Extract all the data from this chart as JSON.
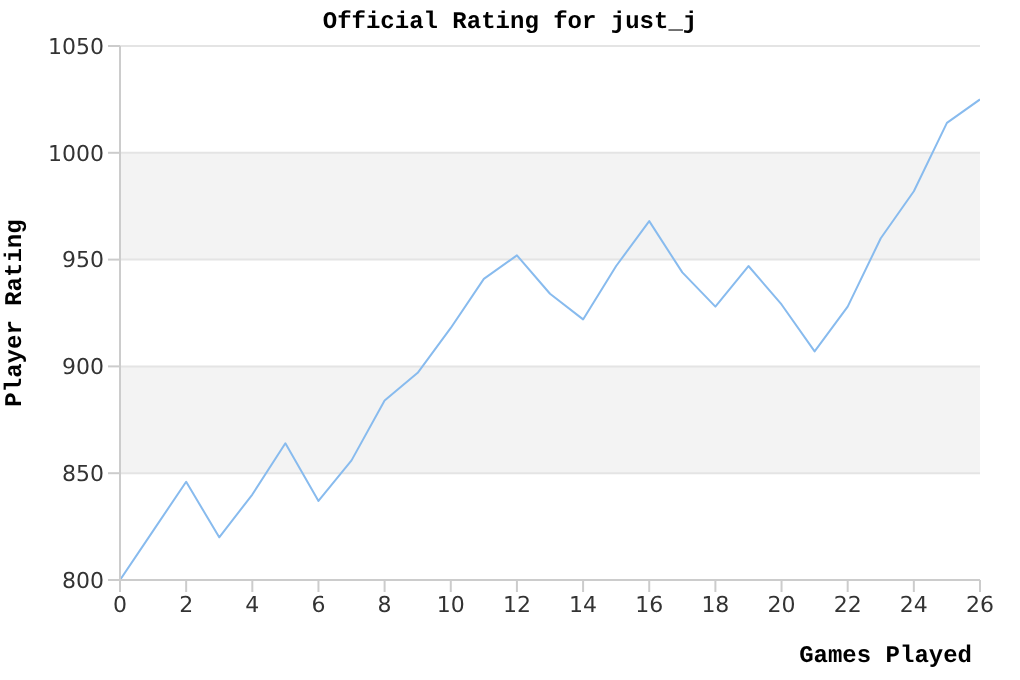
{
  "chart_data": {
    "type": "line",
    "title": "Official Rating for just_j",
    "xlabel": "Games Played",
    "ylabel": "Player Rating",
    "x": [
      0,
      1,
      2,
      3,
      4,
      5,
      6,
      7,
      8,
      9,
      10,
      11,
      12,
      13,
      14,
      15,
      16,
      17,
      18,
      19,
      20,
      21,
      22,
      23,
      24,
      25,
      26
    ],
    "series": [
      {
        "color": "#88bbee",
        "values": [
          800,
          823,
          846,
          820,
          840,
          864,
          837,
          856,
          884,
          897,
          918,
          941,
          952,
          934,
          922,
          947,
          968,
          944,
          928,
          947,
          929,
          907,
          928,
          960,
          982,
          1014,
          1025
        ]
      }
    ],
    "xlim": [
      0,
      26
    ],
    "xticks": [
      0,
      2,
      4,
      6,
      8,
      10,
      12,
      14,
      16,
      18,
      20,
      22,
      24,
      26
    ],
    "ylim": [
      800,
      1050
    ],
    "yticks": [
      800,
      850,
      900,
      950,
      1000,
      1050
    ],
    "grid": "y",
    "legend": false,
    "marker": "none",
    "line_style": "solid"
  }
}
